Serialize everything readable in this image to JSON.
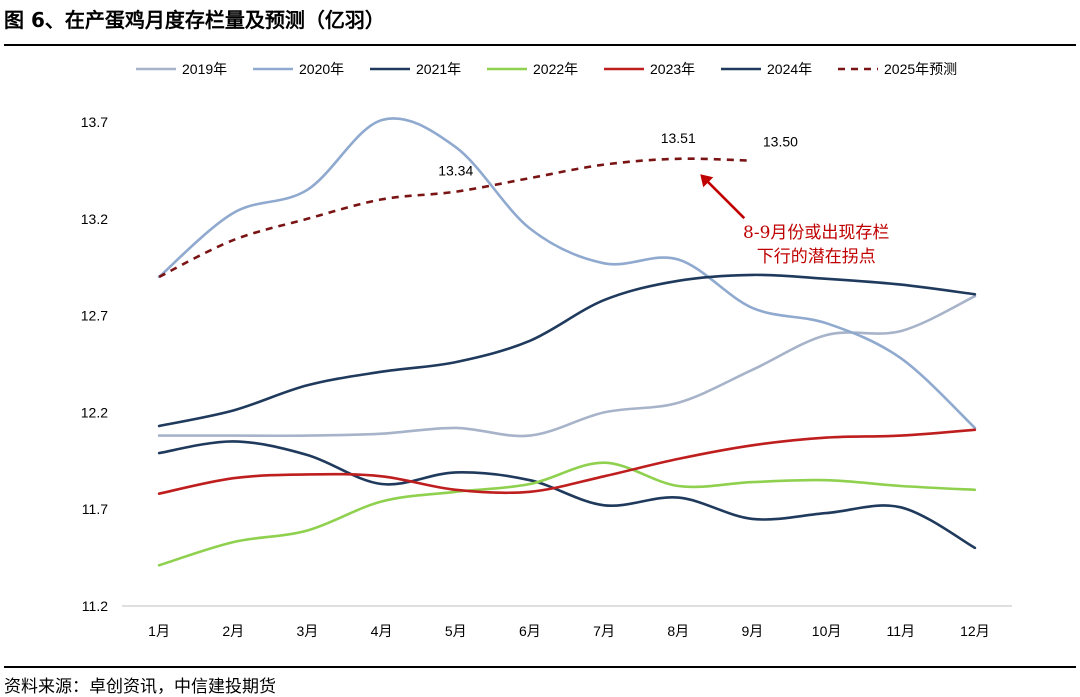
{
  "page": {
    "title": "图 6、在产蛋鸡月度存栏量及预测（亿羽）",
    "source": "资料来源：卓创资讯，中信建投期货"
  },
  "chart_data": {
    "type": "line",
    "title": "图 6、在产蛋鸡月度存栏量及预测（亿羽）",
    "xlabel": "",
    "ylabel": "",
    "categories": [
      "1月",
      "2月",
      "3月",
      "4月",
      "5月",
      "6月",
      "7月",
      "8月",
      "9月",
      "10月",
      "11月",
      "12月"
    ],
    "ylim": [
      11.2,
      13.7
    ],
    "yticks": [
      "11.2",
      "11.7",
      "12.2",
      "12.7",
      "13.2",
      "13.7"
    ],
    "grid": false,
    "legend_position": "top",
    "series": [
      {
        "name": "2019年",
        "color": "#A6B3C9",
        "dash": false,
        "values": [
          12.08,
          12.08,
          12.08,
          12.09,
          12.12,
          12.08,
          12.2,
          12.25,
          12.42,
          12.6,
          12.62,
          12.8
        ]
      },
      {
        "name": "2020年",
        "color": "#8FA9CF",
        "dash": false,
        "values": [
          12.9,
          13.23,
          13.35,
          13.71,
          13.57,
          13.15,
          12.97,
          12.99,
          12.74,
          12.66,
          12.48,
          12.12
        ]
      },
      {
        "name": "2021年",
        "color": "#1F3A5C",
        "dash": false,
        "values": [
          11.99,
          12.05,
          11.98,
          11.83,
          11.89,
          11.85,
          11.72,
          11.76,
          11.65,
          11.68,
          11.71,
          11.5
        ]
      },
      {
        "name": "2022年",
        "color": "#8FD14F",
        "dash": false,
        "values": [
          11.41,
          11.53,
          11.59,
          11.74,
          11.79,
          11.83,
          11.94,
          11.82,
          11.84,
          11.85,
          11.82,
          11.8
        ]
      },
      {
        "name": "2023年",
        "color": "#BF1E1E",
        "dash": false,
        "values": [
          11.78,
          11.86,
          11.88,
          11.87,
          11.8,
          11.79,
          11.87,
          11.96,
          12.03,
          12.07,
          12.08,
          12.11
        ]
      },
      {
        "name": "2024年",
        "color": "#1F3A5C",
        "dash": false,
        "values": [
          12.13,
          12.21,
          12.34,
          12.41,
          12.46,
          12.57,
          12.78,
          12.88,
          12.91,
          12.89,
          12.86,
          12.81
        ]
      },
      {
        "name": "2025年预测",
        "color": "#7A1414",
        "dash": true,
        "values": [
          12.9,
          13.09,
          13.2,
          13.3,
          13.34,
          13.41,
          13.48,
          13.51,
          13.5,
          null,
          null,
          null
        ]
      }
    ],
    "data_labels": [
      {
        "category": "5月",
        "value": 13.34,
        "text": "13.34"
      },
      {
        "category": "8月",
        "value": 13.51,
        "text": "13.51"
      },
      {
        "category": "9月",
        "value": 13.5,
        "text": "13.50"
      }
    ],
    "annotation": {
      "lines": [
        "8-9月份或出现存栏",
        "下行的潜在拐点"
      ],
      "color": "#C00000",
      "arrow_to": {
        "category": "8月",
        "value": 13.42
      }
    }
  }
}
